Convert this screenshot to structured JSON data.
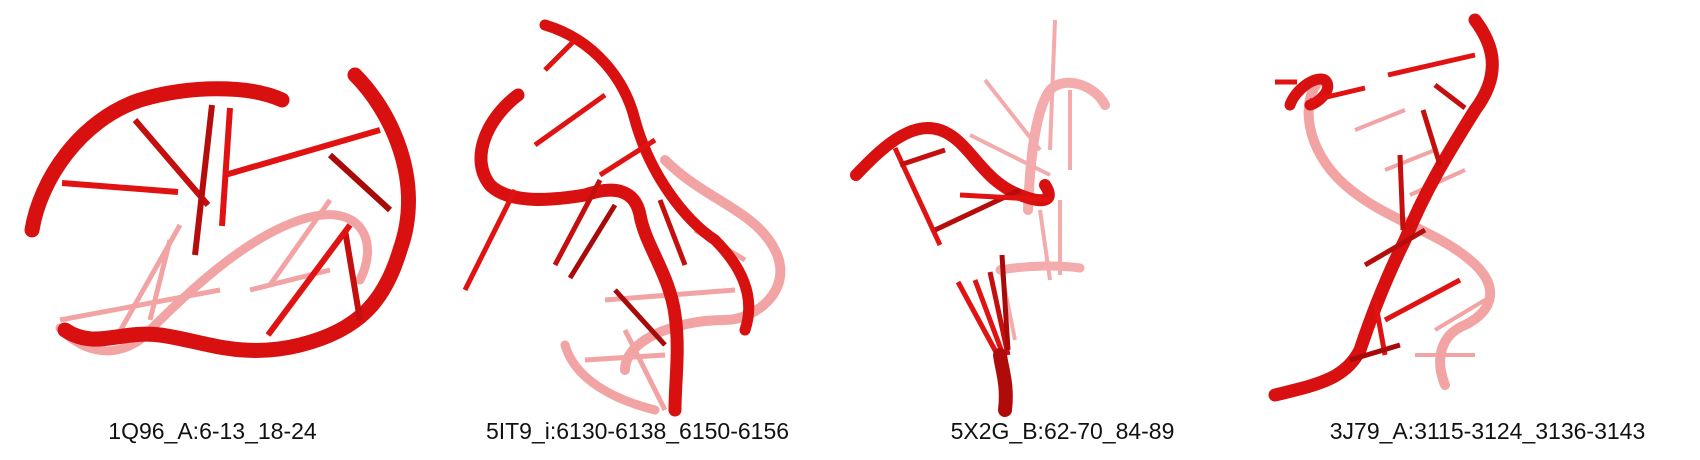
{
  "panels": [
    {
      "label": "1Q96_A:6-13_18-24"
    },
    {
      "label": "5IT9_i:6130-6138_6150-6156"
    },
    {
      "label": "5X2G_B:62-70_84-89"
    },
    {
      "label": "3J79_A:3115-3124_3136-3143"
    }
  ],
  "colors": {
    "backbone": "#e31414",
    "backbone_shadow": "#9e0a0a",
    "faded": "#e85a5a",
    "background": "#ffffff"
  }
}
